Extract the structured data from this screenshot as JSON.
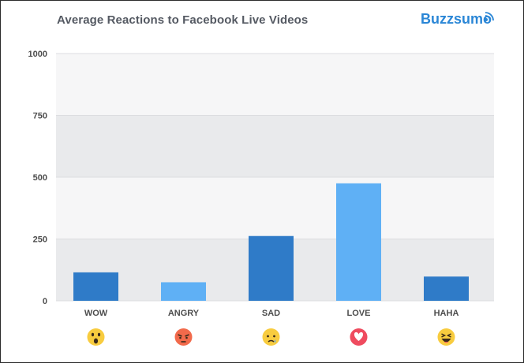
{
  "title": "Average Reactions to Facebook Live Videos",
  "brand": "Buzzsumo",
  "chart_data": {
    "type": "bar",
    "categories": [
      "WOW",
      "ANGRY",
      "SAD",
      "LOVE",
      "HAHA"
    ],
    "values": [
      115,
      75,
      262,
      475,
      98
    ],
    "bar_colors": [
      "#2f7bc8",
      "#5fb0f5",
      "#2f7bc8",
      "#5fb0f5",
      "#2f7bc8"
    ],
    "reaction_icons": [
      "wow-emoji-icon",
      "angry-emoji-icon",
      "sad-emoji-icon",
      "love-emoji-icon",
      "haha-emoji-icon"
    ],
    "title": "Average Reactions to Facebook Live Videos",
    "xlabel": "",
    "ylabel": "",
    "ylim": [
      0,
      1000
    ],
    "yticks": [
      0,
      250,
      500,
      750,
      1000
    ],
    "grid": true,
    "band_colors": [
      "#e9eaec",
      "#f6f6f7"
    ]
  }
}
